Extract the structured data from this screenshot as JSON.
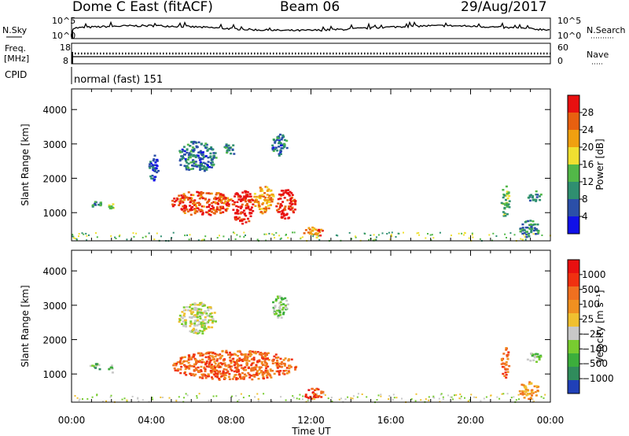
{
  "header": {
    "station": "Dome C East (fitACF)",
    "beam": "Beam 06",
    "date": "29/Aug/2017"
  },
  "aux_panels": {
    "nsky_label": "N.Sky",
    "nsearch_label": "N.Search",
    "count_ticks": [
      "10^5",
      "10^0"
    ],
    "freq_label": "Freq.",
    "freq_unit": "[MHz]",
    "freq_ticks": [
      "18",
      "8"
    ],
    "nave_label": "Nave",
    "nave_ticks": [
      "60",
      "0"
    ],
    "cpid_label": "CPID",
    "cpid_value": "normal (fast) 151"
  },
  "chart_data": [
    {
      "type": "heatmap",
      "name": "power",
      "ylabel": "Slant Range [km]",
      "ylim": [
        180,
        4600
      ],
      "yticks": [
        1000,
        2000,
        3000,
        4000
      ],
      "xlim": [
        0,
        24
      ],
      "colorbar": {
        "label": "Power [dB]",
        "range": [
          0,
          32
        ],
        "ticks": [
          "28",
          "24",
          "20",
          "16",
          "12",
          "8",
          "4"
        ],
        "colors": [
          "#1010e8",
          "#2b4fa8",
          "#2f8f70",
          "#52b848",
          "#f0e030",
          "#f0a010",
          "#e86010",
          "#e81010"
        ]
      },
      "regions": [
        {
          "t": [
            0.9,
            1.5
          ],
          "r": [
            1150,
            1350
          ],
          "level": 0.35
        },
        {
          "t": [
            1.8,
            2.1
          ],
          "r": [
            1050,
            1300
          ],
          "level": 0.45
        },
        {
          "t": [
            3.8,
            4.3
          ],
          "r": [
            1950,
            2700
          ],
          "level": 0.15
        },
        {
          "t": [
            5.0,
            8.0
          ],
          "r": [
            950,
            1650
          ],
          "level": 0.85
        },
        {
          "t": [
            8.0,
            9.1
          ],
          "r": [
            700,
            1700
          ],
          "level": 0.95
        },
        {
          "t": [
            9.1,
            10.1
          ],
          "r": [
            1000,
            1800
          ],
          "level": 0.7
        },
        {
          "t": [
            10.2,
            11.2
          ],
          "r": [
            850,
            1700
          ],
          "level": 0.95
        },
        {
          "t": [
            5.3,
            7.2
          ],
          "r": [
            2200,
            3100
          ],
          "level": 0.25
        },
        {
          "t": [
            7.6,
            8.2
          ],
          "r": [
            2700,
            3050
          ],
          "level": 0.25
        },
        {
          "t": [
            10.0,
            10.8
          ],
          "r": [
            2650,
            3300
          ],
          "level": 0.25
        },
        {
          "t": [
            11.6,
            12.6
          ],
          "r": [
            300,
            600
          ],
          "level": 0.75
        },
        {
          "t": [
            21.5,
            21.9
          ],
          "r": [
            900,
            1800
          ],
          "level": 0.4
        },
        {
          "t": [
            22.4,
            23.4
          ],
          "r": [
            300,
            800
          ],
          "level": 0.3
        },
        {
          "t": [
            22.8,
            23.5
          ],
          "r": [
            1350,
            1650
          ],
          "level": 0.3
        }
      ]
    },
    {
      "type": "heatmap",
      "name": "velocity",
      "ylabel": "Slant Range [km]",
      "xlabel": "Time UT",
      "ylim": [
        180,
        4600
      ],
      "yticks": [
        1000,
        2000,
        3000,
        4000
      ],
      "xlim": [
        0,
        24
      ],
      "xticks": [
        "00:00",
        "04:00",
        "08:00",
        "12:00",
        "16:00",
        "20:00",
        "00:00"
      ],
      "colorbar": {
        "label": "Velocity [m s⁻¹]",
        "range": [
          -1500,
          1500
        ],
        "ticks": [
          "1000",
          "500",
          "100",
          "25",
          "−25",
          "−100",
          "−500",
          "−1000"
        ],
        "colors": [
          "#2040b8",
          "#308c5c",
          "#3cae3c",
          "#78cc30",
          "#c8c8c8",
          "#f0c030",
          "#f09020",
          "#f07020",
          "#f03010",
          "#e81010"
        ]
      },
      "regions": [
        {
          "t": [
            0.9,
            1.5
          ],
          "r": [
            1150,
            1350
          ],
          "level": 0.3
        },
        {
          "t": [
            1.8,
            2.1
          ],
          "r": [
            1050,
            1300
          ],
          "level": 0.35
        },
        {
          "t": [
            5.0,
            11.2
          ],
          "r": [
            850,
            1700
          ],
          "level": 0.75
        },
        {
          "t": [
            5.3,
            7.2
          ],
          "r": [
            2200,
            3100
          ],
          "level": 0.45
        },
        {
          "t": [
            10.0,
            10.8
          ],
          "r": [
            2650,
            3300
          ],
          "level": 0.35
        },
        {
          "t": [
            11.6,
            12.6
          ],
          "r": [
            300,
            600
          ],
          "level": 0.8
        },
        {
          "t": [
            21.5,
            21.9
          ],
          "r": [
            900,
            1800
          ],
          "level": 0.75
        },
        {
          "t": [
            22.4,
            23.4
          ],
          "r": [
            300,
            800
          ],
          "level": 0.65
        },
        {
          "t": [
            22.8,
            23.5
          ],
          "r": [
            1350,
            1650
          ],
          "level": 0.35
        }
      ]
    }
  ]
}
